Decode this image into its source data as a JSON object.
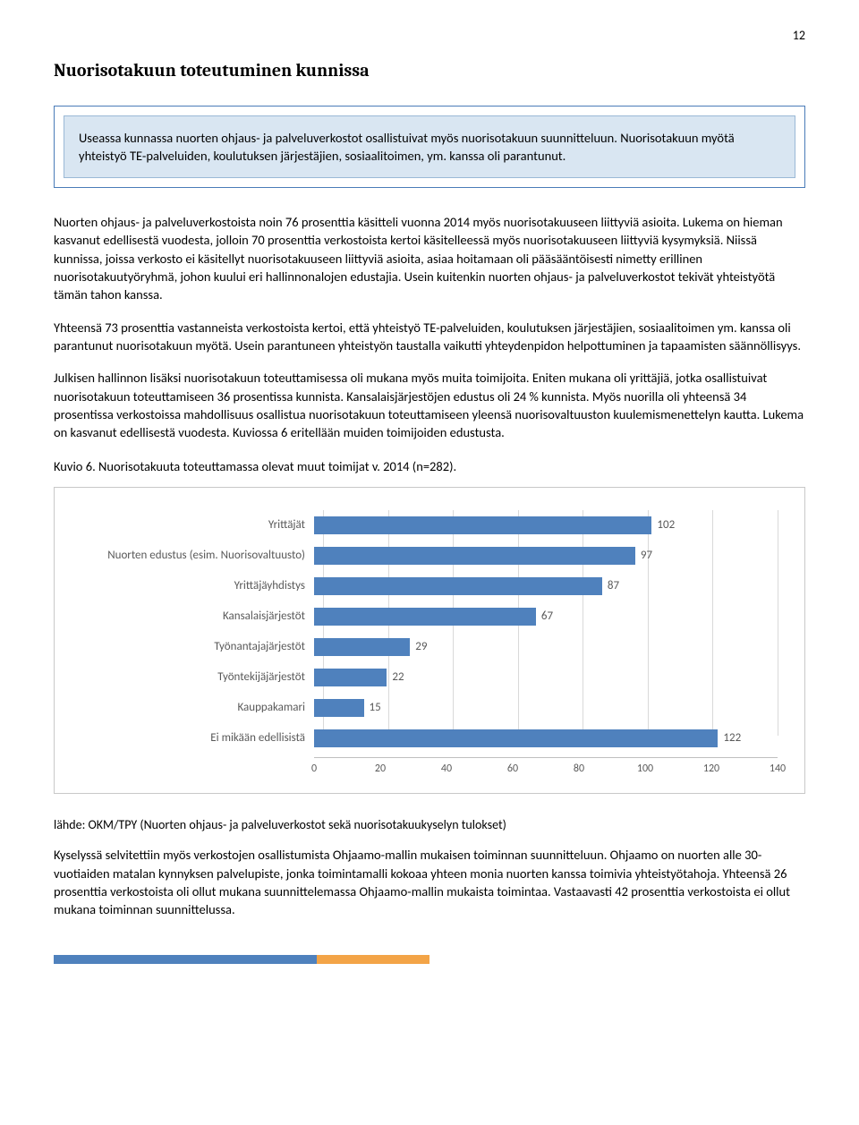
{
  "page_number": "12",
  "heading": "Nuorisotakuun toteutuminen kunnissa",
  "callout": "Useassa kunnassa nuorten ohjaus- ja palveluverkostot osallistuivat myös nuorisotakuun suunnitteluun. Nuorisotakuun myötä yhteistyö TE-palveluiden, koulutuksen järjestäjien, sosiaalitoimen, ym. kanssa oli parantunut.",
  "paragraphs": [
    "Nuorten ohjaus- ja palveluverkostoista noin 76 prosenttia käsitteli vuonna 2014 myös nuorisotakuuseen liittyviä asioita. Lukema on hieman kasvanut edellisestä vuodesta, jolloin 70 prosenttia verkostoista kertoi käsitelleessä myös nuorisotakuuseen liittyviä kysymyksiä. Niissä kunnissa, joissa verkosto ei käsitellyt nuorisotakuuseen liittyviä asioita, asiaa hoitamaan oli pääsääntöisesti nimetty erillinen nuorisotakuutyöryhmä, johon kuului eri hallinnonalojen edustajia. Usein kuitenkin nuorten ohjaus- ja palveluverkostot tekivät yhteistyötä tämän tahon kanssa.",
    "Yhteensä 73 prosenttia vastanneista verkostoista kertoi, että yhteistyö TE-palveluiden, koulutuksen järjestäjien, sosiaalitoimen ym. kanssa oli parantunut nuorisotakuun myötä. Usein parantuneen yhteistyön taustalla vaikutti yhteydenpidon helpottuminen ja tapaamisten säännöllisyys.",
    "Julkisen hallinnon lisäksi nuorisotakuun toteuttamisessa oli mukana myös muita toimijoita. Eniten mukana oli yrittäjiä, jotka osallistuivat nuorisotakuun toteuttamiseen 36 prosentissa kunnista. Kansalaisjärjestöjen edustus oli 24 % kunnista. Myös nuorilla oli yhteensä 34 prosentissa verkostoissa mahdollisuus osallistua nuorisotakuun toteuttamiseen yleensä nuorisovaltuuston kuulemismenettelyn kautta. Lukema on kasvanut edellisestä vuodesta. Kuviossa 6 eritellään muiden toimijoiden edustusta."
  ],
  "chart_title": "Kuvio 6. Nuorisotakuuta toteuttamassa olevat muut toimijat v. 2014 (n=282).",
  "chart": {
    "type": "bar-horizontal",
    "x_max": 140,
    "x_ticks": [
      0,
      20,
      40,
      60,
      80,
      100,
      120,
      140
    ],
    "bar_color": "#4f81bd",
    "grid_color": "#d9d9d9",
    "axis_color": "#bfbfbf",
    "text_color": "#595959",
    "background": "#ffffff",
    "label_fontsize": 13,
    "tick_fontsize": 12,
    "series": [
      {
        "label": "Yrittäjät",
        "value": 102
      },
      {
        "label": "Nuorten edustus (esim. Nuorisovaltuusto)",
        "value": 97
      },
      {
        "label": "Yrittäjäyhdistys",
        "value": 87
      },
      {
        "label": "Kansalaisjärjestöt",
        "value": 67
      },
      {
        "label": "Työnantajajärjestöt",
        "value": 29
      },
      {
        "label": "Työntekijäjärjestöt",
        "value": 22
      },
      {
        "label": "Kauppakamari",
        "value": 15
      },
      {
        "label": "Ei mikään edellisistä",
        "value": 122
      }
    ]
  },
  "source": "lähde: OKM/TPY (Nuorten ohjaus- ja palveluverkostot sekä nuorisotakuukyselyn tulokset)",
  "closing": "Kyselyssä selvitettiin myös verkostojen osallistumista Ohjaamo-mallin mukaisen toiminnan suunnitteluun. Ohjaamo on nuorten alle 30-vuotiaiden matalan kynnyksen palvelupiste, jonka toimintamalli kokoaa yhteen monia nuorten kanssa toimivia yhteistyötahoja.  Yhteensä 26 prosenttia verkostoista oli ollut mukana suunnittelemassa Ohjaamo-mallin mukaista toimintaa. Vastaavasti 42 prosenttia verkostoista ei ollut mukana toiminnan suunnittelussa.",
  "footer_colors": {
    "left": "#4f81bd",
    "right": "#f3a447"
  }
}
